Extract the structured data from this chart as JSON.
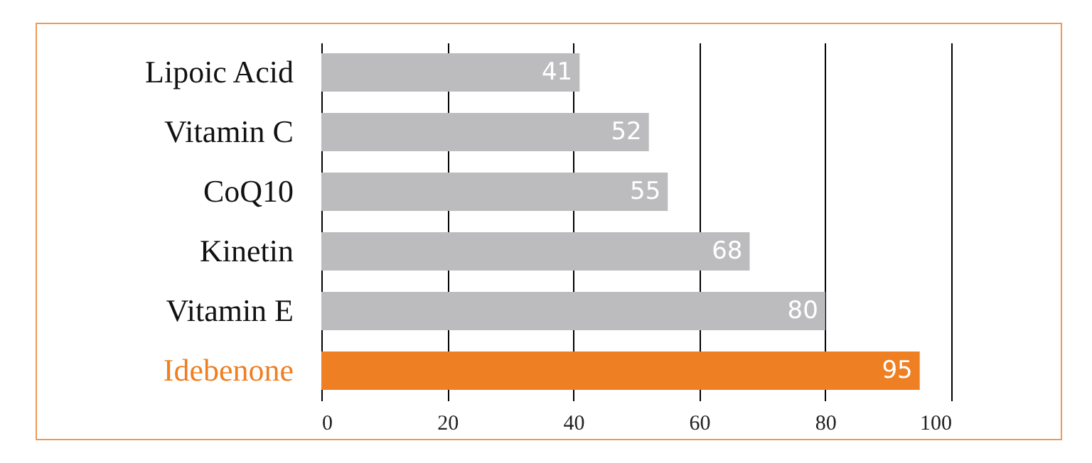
{
  "chart_data": {
    "type": "bar",
    "orientation": "horizontal",
    "categories": [
      "Lipoic Acid",
      "Vitamin C",
      "CoQ10",
      "Kinetin",
      "Vitamin E",
      "Idebenone"
    ],
    "values": [
      41,
      52,
      55,
      68,
      80,
      95
    ],
    "colors": [
      "#bcbcbe",
      "#bcbcbe",
      "#bcbcbe",
      "#bcbcbe",
      "#bcbcbe",
      "#ee7f22"
    ],
    "xlim": [
      0,
      100
    ],
    "xticks": [
      0,
      20,
      40,
      60,
      80,
      100
    ],
    "grid": "x",
    "data_labels": true
  }
}
